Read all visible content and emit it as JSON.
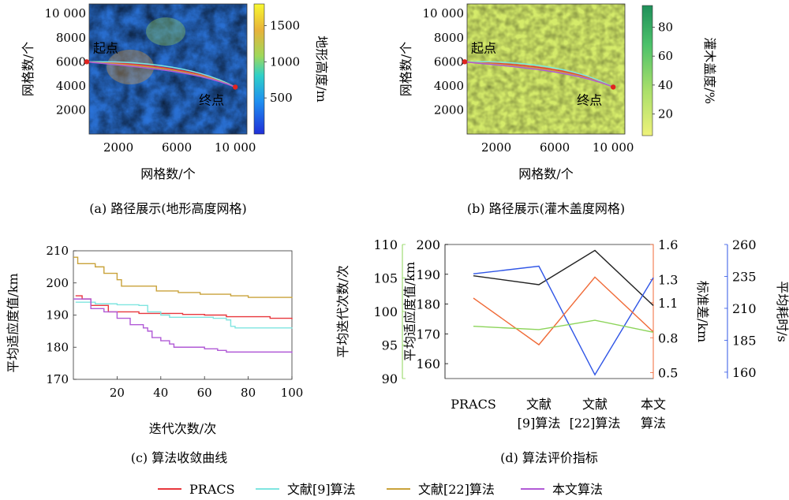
{
  "colors": {
    "pracs": "#e8373d",
    "ref9": "#7fe5e0",
    "ref22": "#c9a23a",
    "ours": "#b15ad6",
    "black": "#222222",
    "orange": "#f06a37",
    "green": "#8cd45a",
    "blue": "#2f55e6"
  },
  "legend": {
    "items": [
      {
        "label": "PRACS",
        "color": "#e8373d"
      },
      {
        "label": "文献[9]算法",
        "color": "#7fe5e0"
      },
      {
        "label": "文献[22]算法",
        "color": "#c9a23a"
      },
      {
        "label": "本文算法",
        "color": "#b15ad6"
      }
    ]
  },
  "chart_data": [
    {
      "id": "a",
      "type": "heatmap",
      "caption": "(a) 路径展示(地形高度网格)",
      "xlabel": "网格数/个",
      "ylabel": "网格数/个",
      "x_ticks": [
        "2000",
        "6000",
        "10 000"
      ],
      "y_ticks": [
        "10 000",
        "8000",
        "6000",
        "4000",
        "2000"
      ],
      "xlim": [
        0,
        10800
      ],
      "ylim": [
        0,
        10800
      ],
      "colorbar": {
        "label": "地形高度/m",
        "ticks": [
          "1500",
          "1000",
          "500"
        ],
        "range": [
          0,
          1800
        ]
      },
      "start": {
        "label": "起点",
        "x": 0,
        "y": 6000
      },
      "end": {
        "label": "终点",
        "x": 10000,
        "y": 3900
      }
    },
    {
      "id": "b",
      "type": "heatmap",
      "caption": "(b) 路径展示(灌木盖度网格)",
      "xlabel": "网格数/个",
      "ylabel": "网格数/个",
      "x_ticks": [
        "2000",
        "6000",
        "10 000"
      ],
      "y_ticks": [
        "10 000",
        "8000",
        "6000",
        "4000",
        "2000"
      ],
      "xlim": [
        0,
        10800
      ],
      "ylim": [
        0,
        10800
      ],
      "colorbar": {
        "label": "灌木盖度/%",
        "ticks": [
          "80",
          "60",
          "40",
          "20"
        ],
        "range": [
          5,
          95
        ]
      },
      "start": {
        "label": "起点",
        "x": 0,
        "y": 6000
      },
      "end": {
        "label": "终点",
        "x": 10000,
        "y": 3900
      }
    },
    {
      "id": "c",
      "type": "line",
      "caption": "(c) 算法收敛曲线",
      "xlabel": "迭代次数/次",
      "ylabel": "平均适应度值/km",
      "xlim": [
        0,
        100
      ],
      "ylim": [
        170,
        210
      ],
      "x_ticks": [
        "20",
        "40",
        "60",
        "80",
        "100"
      ],
      "y_ticks": [
        "170",
        "180",
        "190",
        "200",
        "210"
      ],
      "series": [
        {
          "name": "PRACS",
          "color": "#e8373d",
          "points": [
            [
              1,
              196
            ],
            [
              4,
              195
            ],
            [
              6,
              195
            ],
            [
              8,
              193
            ],
            [
              14,
              193
            ],
            [
              16,
              191
            ],
            [
              22,
              191
            ],
            [
              30,
              190.5
            ],
            [
              50,
              190.2
            ],
            [
              60,
              190
            ],
            [
              70,
              189.5
            ],
            [
              90,
              189
            ],
            [
              100,
              188.7
            ]
          ]
        },
        {
          "name": "文献[9]算法",
          "color": "#7fe5e0",
          "points": [
            [
              1,
              194
            ],
            [
              10,
              193.5
            ],
            [
              20,
              193.2
            ],
            [
              30,
              193
            ],
            [
              34,
              191
            ],
            [
              40,
              190
            ],
            [
              44,
              189.3
            ],
            [
              64,
              189
            ],
            [
              70,
              188.5
            ],
            [
              72,
              186.5
            ],
            [
              74,
              186
            ],
            [
              100,
              185.8
            ]
          ]
        },
        {
          "name": "文献[22]算法",
          "color": "#c9a23a",
          "points": [
            [
              0,
              208
            ],
            [
              2,
              206
            ],
            [
              6,
              206
            ],
            [
              10,
              205
            ],
            [
              14,
              203
            ],
            [
              20,
              201
            ],
            [
              22,
              199
            ],
            [
              36,
              199
            ],
            [
              38,
              197.5
            ],
            [
              48,
              197
            ],
            [
              58,
              196.5
            ],
            [
              72,
              196
            ],
            [
              80,
              195.5
            ],
            [
              100,
              195.3
            ]
          ]
        },
        {
          "name": "本文算法",
          "color": "#b15ad6",
          "points": [
            [
              0,
              195
            ],
            [
              6,
              195
            ],
            [
              8,
              192
            ],
            [
              14,
              191
            ],
            [
              20,
              189
            ],
            [
              26,
              187
            ],
            [
              32,
              186
            ],
            [
              34,
              185
            ],
            [
              36,
              183
            ],
            [
              40,
              182
            ],
            [
              44,
              181
            ],
            [
              46,
              180
            ],
            [
              56,
              180
            ],
            [
              60,
              179.5
            ],
            [
              66,
              179
            ],
            [
              70,
              178.5
            ],
            [
              100,
              178.2
            ]
          ]
        }
      ]
    },
    {
      "id": "d",
      "type": "line",
      "caption": "(d) 算法评价指标",
      "categories": [
        "PRACS",
        "文献\n[9]算法",
        "文献\n[22]算法",
        "本文\n算法"
      ],
      "axes": [
        {
          "label": "平均迭代次数/次",
          "color": "#8cd45a",
          "range": [
            90,
            110
          ],
          "ticks": [
            "90",
            "95",
            "100",
            "105",
            "110"
          ]
        },
        {
          "label": "平均适应度值/km",
          "color": "#000000",
          "range": [
            155,
            200
          ],
          "ticks": [
            "160",
            "170",
            "180",
            "190",
            "200"
          ]
        },
        {
          "label": "标准差/km",
          "color": "#f06a37",
          "range": [
            0.45,
            1.6
          ],
          "ticks": [
            "0.5",
            "0.8",
            "1.1",
            "1.3",
            "1.6"
          ]
        },
        {
          "label": "平均耗时/s",
          "color": "#2f55e6",
          "range": [
            155,
            260
          ],
          "ticks": [
            "160",
            "185",
            "210",
            "235",
            "260"
          ]
        }
      ],
      "series": [
        {
          "axis": 1,
          "color": "#222222",
          "values": [
            189.5,
            186.5,
            198,
            179.5
          ]
        },
        {
          "axis": 3,
          "color": "#2f55e6",
          "values": [
            237,
            243,
            158,
            234
          ]
        },
        {
          "axis": 2,
          "color": "#f06a37",
          "values": [
            1.14,
            0.74,
            1.32,
            0.85
          ]
        },
        {
          "axis": 0,
          "color": "#8cd45a",
          "values": [
            97.8,
            97.3,
            98.7,
            96.9
          ]
        }
      ]
    }
  ]
}
